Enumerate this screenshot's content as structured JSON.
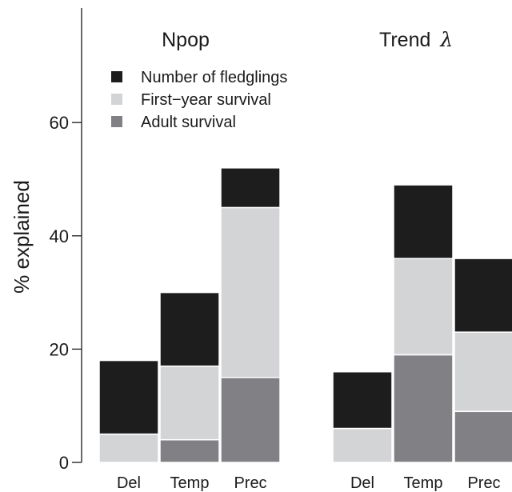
{
  "chart_data": {
    "type": "bar",
    "stacked": true,
    "ylabel": "% explained",
    "ylim": [
      0,
      80
    ],
    "yticks": [
      0,
      20,
      40,
      60
    ],
    "grid": false,
    "legend_position": "top-left",
    "legend_order": [
      "Number of fledglings",
      "First−year survival",
      "Adult survival"
    ],
    "series_colors": {
      "Adult survival": "#818185",
      "First−year survival": "#d3d4d6",
      "Number of fledglings": "#1d1d1d"
    },
    "panels": [
      {
        "title": "Npop",
        "categories": [
          "Del",
          "Temp",
          "Prec"
        ],
        "series": [
          {
            "name": "Adult survival",
            "values": [
              0,
              4,
              15
            ]
          },
          {
            "name": "First−year survival",
            "values": [
              5,
              13,
              30
            ]
          },
          {
            "name": "Number of fledglings",
            "values": [
              13,
              13,
              7
            ]
          }
        ]
      },
      {
        "title": "Trend",
        "title_symbol": "λ",
        "categories": [
          "Del",
          "Temp",
          "Prec"
        ],
        "series": [
          {
            "name": "Adult survival",
            "values": [
              0,
              19,
              9
            ]
          },
          {
            "name": "First−year survival",
            "values": [
              6,
              17,
              14
            ]
          },
          {
            "name": "Number of fledglings",
            "values": [
              10,
              13,
              13
            ]
          }
        ]
      }
    ]
  }
}
